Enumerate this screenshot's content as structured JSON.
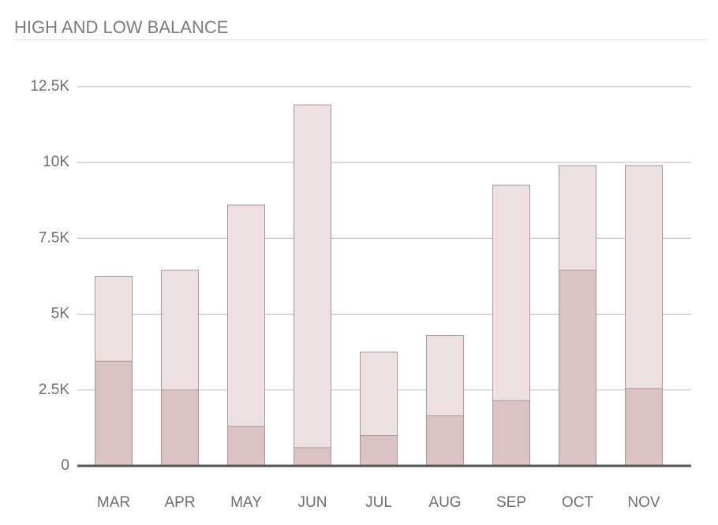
{
  "chart_data": {
    "type": "bar",
    "title": "HIGH AND LOW BALANCE",
    "categories": [
      "MAR",
      "APR",
      "MAY",
      "JUN",
      "JUL",
      "AUG",
      "SEP",
      "OCT",
      "NOV"
    ],
    "series": [
      {
        "color": "#ede0e1",
        "values": [
          6250,
          6450,
          8600,
          11900,
          3750,
          4300,
          9250,
          9900,
          9900
        ]
      },
      {
        "color": "#dbc3c4",
        "values": [
          3450,
          2500,
          1300,
          600,
          1000,
          1650,
          2150,
          6450,
          2550
        ]
      }
    ],
    "ylim": [
      0,
      12500
    ],
    "yticks": [
      0,
      {
        "value": 2500,
        "label": "2.5K"
      },
      {
        "value": 5000,
        "label": "5K"
      },
      {
        "value": 7500,
        "label": "7.5K"
      },
      {
        "value": 10000,
        "label": "10K"
      },
      {
        "value": 12500,
        "label": "12.5K"
      }
    ],
    "grid": true
  }
}
